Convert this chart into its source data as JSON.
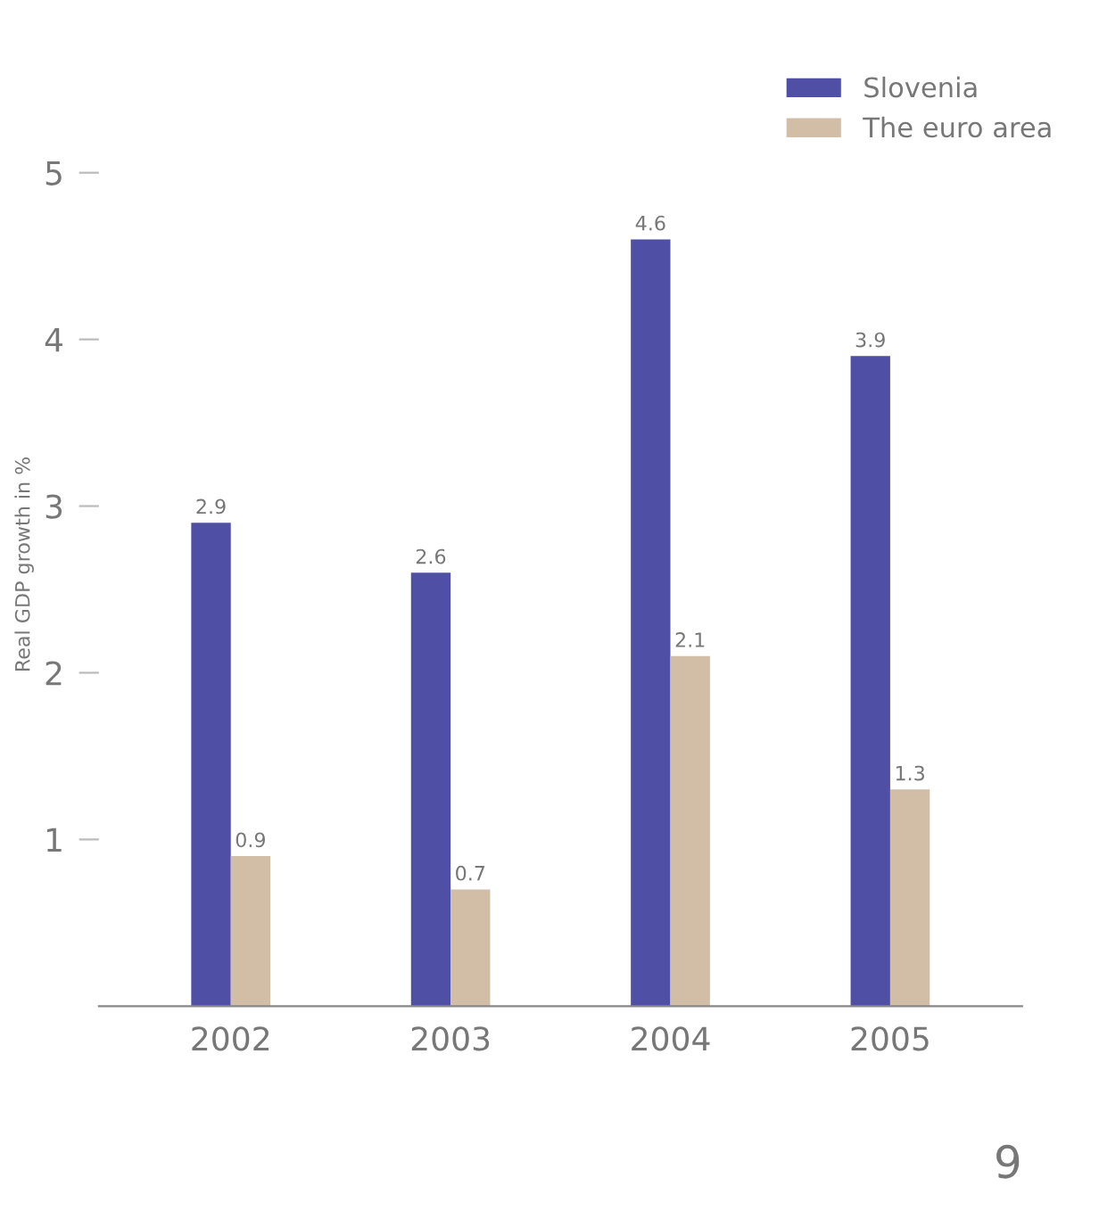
{
  "chart_data": {
    "type": "bar",
    "ylabel": "Real GDP growth in %",
    "categories": [
      "2002",
      "2003",
      "2004",
      "2005"
    ],
    "series": [
      {
        "name": "Slovenia",
        "color": "#4f4fa6",
        "values": [
          2.9,
          2.6,
          4.6,
          3.9
        ]
      },
      {
        "name": "The euro area",
        "color": "#d2bda7",
        "values": [
          0.9,
          0.7,
          2.1,
          1.3
        ]
      }
    ],
    "ylim": [
      0,
      5.3
    ],
    "yticks": [
      1,
      2,
      3,
      4,
      5
    ],
    "data_labels": true,
    "grid": false,
    "legend": "top right",
    "annotations": [
      "9"
    ]
  }
}
